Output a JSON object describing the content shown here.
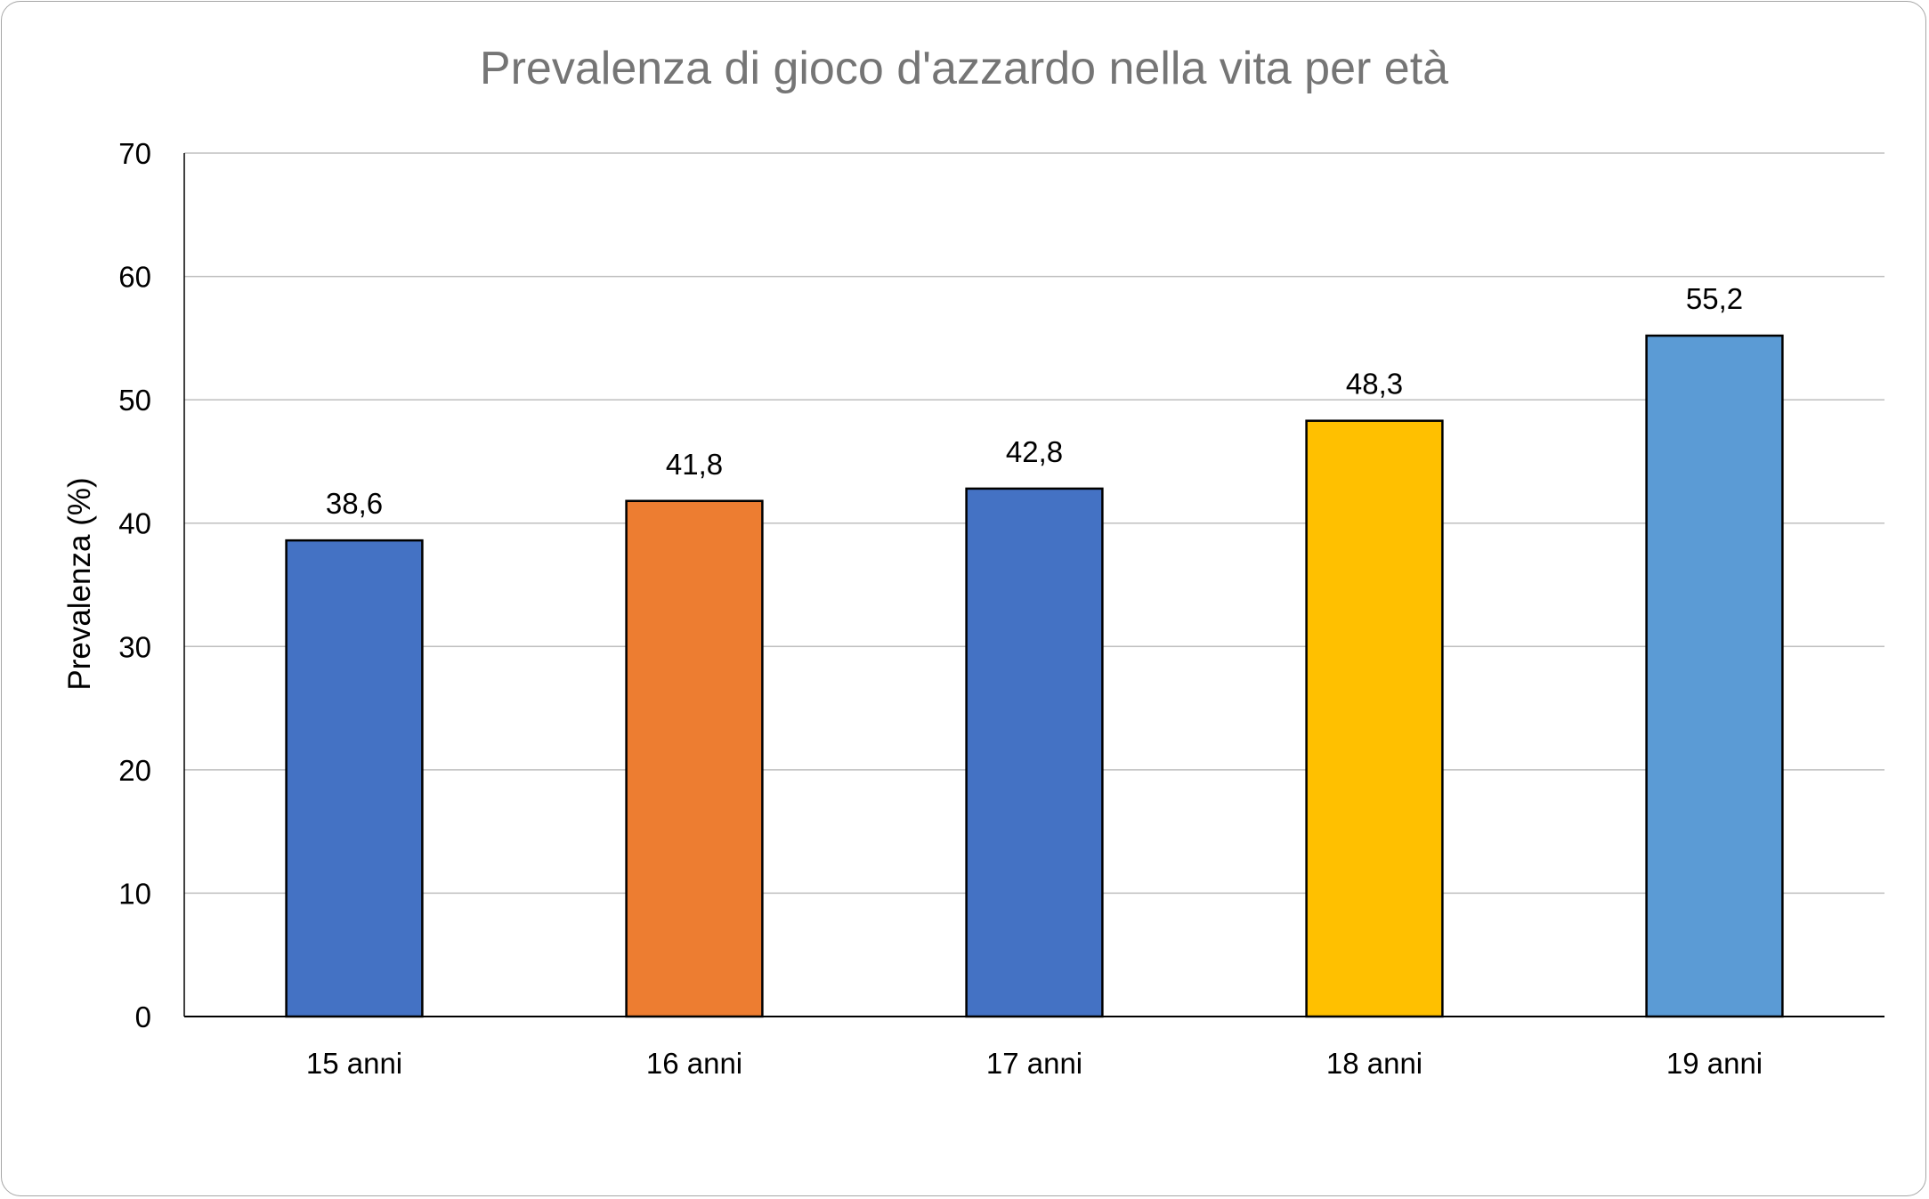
{
  "chart_data": {
    "type": "bar",
    "title": "Prevalenza di gioco d'azzardo nella vita per età",
    "xlabel": "",
    "ylabel": "Prevalenza (%)",
    "categories": [
      "15 anni",
      "16 anni",
      "17 anni",
      "18 anni",
      "19 anni"
    ],
    "values": [
      38.6,
      41.8,
      42.8,
      48.3,
      55.2
    ],
    "value_labels": [
      "38,6",
      "41,8",
      "42,8",
      "48,3",
      "55,2"
    ],
    "bar_colors": [
      "#4472c4",
      "#ed7d31",
      "#4472c4",
      "#ffc000",
      "#5b9bd5"
    ],
    "bar_border_color": "#000000",
    "gridline_color": "#bfbfbf",
    "ylim": [
      0,
      70
    ],
    "yticks": [
      0,
      10,
      20,
      30,
      40,
      50,
      60,
      70
    ],
    "grid": true,
    "legend": "none"
  }
}
